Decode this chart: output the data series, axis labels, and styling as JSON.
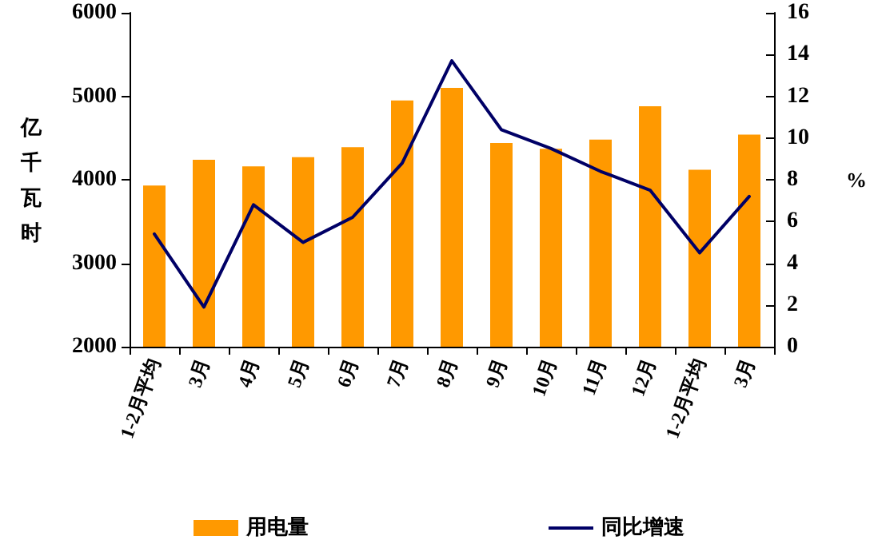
{
  "chart_data": {
    "type": "bar",
    "ylabel": "亿千瓦时",
    "y2label": "%",
    "categories": [
      "1-2月平均",
      "3月",
      "4月",
      "5月",
      "6月",
      "7月",
      "8月",
      "9月",
      "10月",
      "11月",
      "12月",
      "1-2月平均",
      "3月"
    ],
    "series": [
      {
        "name": "用电量",
        "color": "#ff9900",
        "values": [
          3930,
          4240,
          4160,
          4270,
          4390,
          4950,
          5100,
          4440,
          4370,
          4480,
          4880,
          4120,
          4540
        ]
      },
      {
        "name": "同比增速",
        "type": "line",
        "axis": "y2",
        "color": "#000066",
        "values": [
          5.4,
          1.9,
          6.8,
          5.0,
          6.2,
          8.8,
          13.7,
          10.4,
          9.5,
          8.4,
          7.5,
          4.5,
          7.2
        ]
      }
    ],
    "ylim": [
      2000,
      6000
    ],
    "yticks": [
      2000,
      3000,
      4000,
      5000,
      6000
    ],
    "y2lim": [
      0,
      16
    ],
    "y2ticks": [
      0,
      2,
      4,
      6,
      8,
      10,
      12,
      14,
      16
    ],
    "grid": false,
    "legend": "bottom",
    "marker": "none",
    "line_style": "solid"
  }
}
